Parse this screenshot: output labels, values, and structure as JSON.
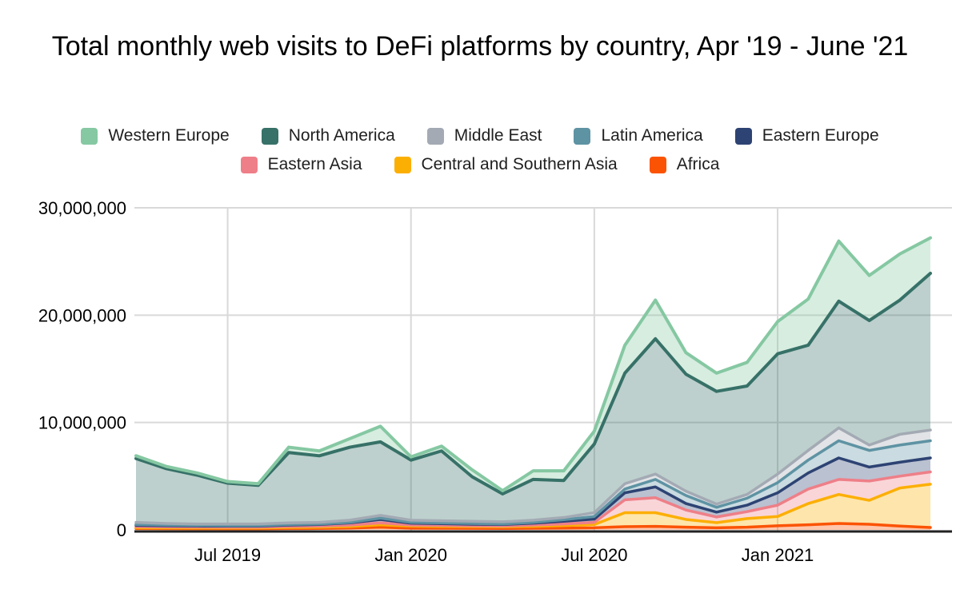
{
  "title": "Total monthly web visits to DeFi platforms by country, Apr '19 - June '21",
  "chart_data": {
    "type": "area",
    "stacked": true,
    "stack_note": "Series are stacked bottom-to-top in reverse legend order (Africa at bottom, Western Europe on top); boundary lines use solid series color, fills are translucent.",
    "x": [
      "Apr 2019",
      "May 2019",
      "Jun 2019",
      "Jul 2019",
      "Aug 2019",
      "Sep 2019",
      "Oct 2019",
      "Nov 2019",
      "Dec 2019",
      "Jan 2020",
      "Feb 2020",
      "Mar 2020",
      "Apr 2020",
      "May 2020",
      "Jun 2020",
      "Jul 2020",
      "Aug 2020",
      "Sep 2020",
      "Oct 2020",
      "Nov 2020",
      "Dec 2020",
      "Jan 2021",
      "Feb 2021",
      "Mar 2021",
      "Apr 2021",
      "May 2021",
      "Jun 2021"
    ],
    "series": [
      {
        "name": "Western Europe",
        "color": "#85C8A2",
        "values": [
          250000,
          200000,
          200000,
          150000,
          150000,
          500000,
          450000,
          800000,
          1450000,
          300000,
          450000,
          650000,
          300000,
          800000,
          900000,
          1200000,
          2600000,
          3600000,
          2000000,
          1700000,
          2200000,
          3000000,
          4300000,
          5600000,
          4200000,
          4300000,
          3300000
        ]
      },
      {
        "name": "North America",
        "color": "#377168",
        "values": [
          5950000,
          5100000,
          4550000,
          3800000,
          3600000,
          6550000,
          6200000,
          6800000,
          6850000,
          5600000,
          6500000,
          4150000,
          2600000,
          3800000,
          3450000,
          6400000,
          10300000,
          12600000,
          10900000,
          10500000,
          10100000,
          11200000,
          9800000,
          11800000,
          11600000,
          12500000,
          14600000
        ]
      },
      {
        "name": "Middle East",
        "color": "#A3AAB4",
        "values": [
          200000,
          150000,
          130000,
          150000,
          150000,
          150000,
          150000,
          200000,
          250000,
          200000,
          200000,
          200000,
          200000,
          200000,
          200000,
          350000,
          500000,
          500000,
          400000,
          300000,
          350000,
          800000,
          900000,
          1200000,
          500000,
          1000000,
          1000000
        ]
      },
      {
        "name": "Latin America",
        "color": "#5E93A3",
        "values": [
          80000,
          70000,
          60000,
          50000,
          50000,
          50000,
          50000,
          50000,
          130000,
          80000,
          70000,
          80000,
          50000,
          80000,
          150000,
          250000,
          350000,
          700000,
          750000,
          450000,
          650000,
          950000,
          1200000,
          1600000,
          1550000,
          1600000,
          1600000
        ]
      },
      {
        "name": "Eastern Europe",
        "color": "#2D4373",
        "values": [
          120000,
          100000,
          100000,
          100000,
          100000,
          130000,
          150000,
          200000,
          320000,
          170000,
          160000,
          140000,
          140000,
          170000,
          250000,
          300000,
          650000,
          1000000,
          600000,
          450000,
          600000,
          1150000,
          1500000,
          2000000,
          1300000,
          1300000,
          1300000
        ]
      },
      {
        "name": "Eastern Asia",
        "color": "#EE7F88",
        "values": [
          100000,
          90000,
          80000,
          70000,
          70000,
          100000,
          100000,
          130000,
          180000,
          100000,
          100000,
          80000,
          80000,
          120000,
          150000,
          200000,
          1200000,
          1400000,
          880000,
          530000,
          650000,
          1050000,
          1350000,
          1400000,
          1800000,
          1100000,
          1150000
        ]
      },
      {
        "name": "Central and Southern Asia",
        "color": "#FCAF03",
        "values": [
          80000,
          80000,
          80000,
          80000,
          80000,
          100000,
          120000,
          150000,
          220000,
          190000,
          170000,
          160000,
          150000,
          180000,
          230000,
          300000,
          1300000,
          1270000,
          720000,
          470000,
          800000,
          870000,
          1980000,
          2700000,
          2230000,
          3550000,
          4030000
        ]
      },
      {
        "name": "Africa",
        "color": "#FB5304",
        "values": [
          120000,
          110000,
          100000,
          100000,
          100000,
          120000,
          130000,
          170000,
          250000,
          160000,
          150000,
          140000,
          130000,
          150000,
          170000,
          200000,
          300000,
          330000,
          250000,
          200000,
          250000,
          380000,
          470000,
          600000,
          520000,
          350000,
          220000
        ]
      }
    ],
    "title": "Total monthly web visits to DeFi platforms by country, Apr '19 - June '21",
    "xlabel": "",
    "ylabel": "",
    "ylim": [
      0,
      30000000
    ],
    "y_ticks": [
      {
        "value": 0,
        "label": "0"
      },
      {
        "value": 10000000,
        "label": "10,000,000"
      },
      {
        "value": 20000000,
        "label": "20,000,000"
      },
      {
        "value": 30000000,
        "label": "30,000,000"
      }
    ],
    "x_ticks": [
      {
        "index": 3,
        "label": "Jul 2019"
      },
      {
        "index": 9,
        "label": "Jan 2020"
      },
      {
        "index": 15,
        "label": "Jul 2020"
      },
      {
        "index": 21,
        "label": "Jan 2021"
      }
    ],
    "grid": true,
    "legend_position": "top",
    "fill_opacity": 0.33,
    "grid_color": "#d9d9d9",
    "axis_color": "#222222",
    "tick_label_color": "#000000"
  }
}
